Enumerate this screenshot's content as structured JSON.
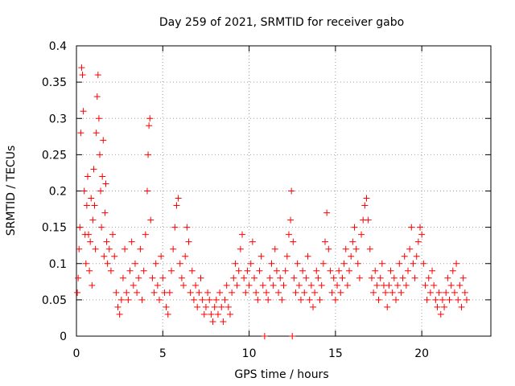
{
  "chart_data": {
    "type": "scatter",
    "title": "Day 259 of 2021, SRMTID for receiver gabo",
    "xlabel": "GPS time / hours",
    "ylabel": "SRMTID / TECUs",
    "xlim": [
      0,
      24
    ],
    "ylim": [
      0,
      0.4
    ],
    "x_ticks": [
      0,
      5,
      10,
      15,
      20
    ],
    "x_tick_labels": [
      "0",
      "5",
      "10",
      "15",
      "20"
    ],
    "y_ticks": [
      0,
      0.05,
      0.1,
      0.15,
      0.2,
      0.25,
      0.3,
      0.35,
      0.4
    ],
    "y_tick_labels": [
      "0",
      "0.05",
      "0.1",
      "0.15",
      "0.2",
      "0.25",
      "0.3",
      "0.35",
      "0.4"
    ],
    "grid": true,
    "marker": "+",
    "color": "#ff0000",
    "series": [
      {
        "name": "SRMTID",
        "points": [
          [
            0.05,
            0.06
          ],
          [
            0.1,
            0.08
          ],
          [
            0.15,
            0.12
          ],
          [
            0.2,
            0.15
          ],
          [
            0.25,
            0.28
          ],
          [
            0.3,
            0.37
          ],
          [
            0.35,
            0.36
          ],
          [
            0.4,
            0.31
          ],
          [
            0.45,
            0.2
          ],
          [
            0.5,
            0.14
          ],
          [
            0.55,
            0.1
          ],
          [
            0.6,
            0.18
          ],
          [
            0.65,
            0.22
          ],
          [
            0.7,
            0.14
          ],
          [
            0.75,
            0.09
          ],
          [
            0.8,
            0.13
          ],
          [
            0.85,
            0.19
          ],
          [
            0.9,
            0.07
          ],
          [
            0.95,
            0.16
          ],
          [
            1.0,
            0.23
          ],
          [
            1.05,
            0.18
          ],
          [
            1.1,
            0.12
          ],
          [
            1.15,
            0.28
          ],
          [
            1.2,
            0.33
          ],
          [
            1.25,
            0.36
          ],
          [
            1.3,
            0.3
          ],
          [
            1.35,
            0.25
          ],
          [
            1.4,
            0.2
          ],
          [
            1.45,
            0.15
          ],
          [
            1.5,
            0.22
          ],
          [
            1.55,
            0.27
          ],
          [
            1.6,
            0.11
          ],
          [
            1.65,
            0.17
          ],
          [
            1.7,
            0.21
          ],
          [
            1.75,
            0.13
          ],
          [
            1.8,
            0.1
          ],
          [
            1.9,
            0.12
          ],
          [
            2.0,
            0.09
          ],
          [
            2.1,
            0.14
          ],
          [
            2.2,
            0.11
          ],
          [
            2.3,
            0.06
          ],
          [
            2.4,
            0.04
          ],
          [
            2.5,
            0.03
          ],
          [
            2.6,
            0.05
          ],
          [
            2.7,
            0.08
          ],
          [
            2.8,
            0.12
          ],
          [
            2.9,
            0.06
          ],
          [
            3.0,
            0.05
          ],
          [
            3.1,
            0.09
          ],
          [
            3.2,
            0.13
          ],
          [
            3.3,
            0.07
          ],
          [
            3.4,
            0.1
          ],
          [
            3.5,
            0.06
          ],
          [
            3.6,
            0.08
          ],
          [
            3.7,
            0.12
          ],
          [
            3.8,
            0.05
          ],
          [
            3.9,
            0.09
          ],
          [
            4.0,
            0.14
          ],
          [
            4.1,
            0.2
          ],
          [
            4.15,
            0.25
          ],
          [
            4.2,
            0.29
          ],
          [
            4.25,
            0.3
          ],
          [
            4.3,
            0.16
          ],
          [
            4.4,
            0.08
          ],
          [
            4.5,
            0.06
          ],
          [
            4.6,
            0.1
          ],
          [
            4.7,
            0.07
          ],
          [
            4.8,
            0.05
          ],
          [
            4.9,
            0.11
          ],
          [
            5.0,
            0.08
          ],
          [
            5.1,
            0.06
          ],
          [
            5.2,
            0.04
          ],
          [
            5.3,
            0.03
          ],
          [
            5.4,
            0.06
          ],
          [
            5.5,
            0.09
          ],
          [
            5.6,
            0.12
          ],
          [
            5.7,
            0.15
          ],
          [
            5.8,
            0.18
          ],
          [
            5.9,
            0.19
          ],
          [
            6.0,
            0.1
          ],
          [
            6.1,
            0.08
          ],
          [
            6.2,
            0.07
          ],
          [
            6.3,
            0.11
          ],
          [
            6.4,
            0.15
          ],
          [
            6.5,
            0.13
          ],
          [
            6.6,
            0.06
          ],
          [
            6.7,
            0.09
          ],
          [
            6.8,
            0.05
          ],
          [
            6.9,
            0.07
          ],
          [
            7.0,
            0.04
          ],
          [
            7.1,
            0.06
          ],
          [
            7.2,
            0.08
          ],
          [
            7.3,
            0.05
          ],
          [
            7.4,
            0.03
          ],
          [
            7.5,
            0.04
          ],
          [
            7.6,
            0.06
          ],
          [
            7.7,
            0.05
          ],
          [
            7.8,
            0.03
          ],
          [
            7.9,
            0.02
          ],
          [
            8.0,
            0.04
          ],
          [
            8.1,
            0.05
          ],
          [
            8.2,
            0.03
          ],
          [
            8.3,
            0.06
          ],
          [
            8.4,
            0.04
          ],
          [
            8.5,
            0.02
          ],
          [
            8.6,
            0.05
          ],
          [
            8.7,
            0.07
          ],
          [
            8.8,
            0.04
          ],
          [
            8.9,
            0.03
          ],
          [
            9.0,
            0.06
          ],
          [
            9.1,
            0.08
          ],
          [
            9.2,
            0.1
          ],
          [
            9.3,
            0.07
          ],
          [
            9.4,
            0.09
          ],
          [
            9.5,
            0.12
          ],
          [
            9.6,
            0.14
          ],
          [
            9.7,
            0.08
          ],
          [
            9.8,
            0.06
          ],
          [
            9.9,
            0.09
          ],
          [
            10.0,
            0.07
          ],
          [
            10.1,
            0.1
          ],
          [
            10.2,
            0.13
          ],
          [
            10.3,
            0.08
          ],
          [
            10.4,
            0.06
          ],
          [
            10.5,
            0.05
          ],
          [
            10.6,
            0.09
          ],
          [
            10.7,
            0.11
          ],
          [
            10.8,
            0.07
          ],
          [
            10.9,
            0.0
          ],
          [
            11.0,
            0.06
          ],
          [
            11.1,
            0.05
          ],
          [
            11.2,
            0.08
          ],
          [
            11.3,
            0.1
          ],
          [
            11.4,
            0.07
          ],
          [
            11.5,
            0.12
          ],
          [
            11.6,
            0.09
          ],
          [
            11.7,
            0.06
          ],
          [
            11.8,
            0.08
          ],
          [
            11.9,
            0.05
          ],
          [
            12.0,
            0.07
          ],
          [
            12.1,
            0.09
          ],
          [
            12.2,
            0.11
          ],
          [
            12.3,
            0.14
          ],
          [
            12.4,
            0.16
          ],
          [
            12.45,
            0.2
          ],
          [
            12.5,
            0.0
          ],
          [
            12.55,
            0.13
          ],
          [
            12.6,
            0.08
          ],
          [
            12.7,
            0.06
          ],
          [
            12.8,
            0.1
          ],
          [
            12.9,
            0.07
          ],
          [
            13.0,
            0.05
          ],
          [
            13.1,
            0.09
          ],
          [
            13.2,
            0.06
          ],
          [
            13.3,
            0.08
          ],
          [
            13.4,
            0.11
          ],
          [
            13.5,
            0.05
          ],
          [
            13.6,
            0.07
          ],
          [
            13.7,
            0.04
          ],
          [
            13.8,
            0.06
          ],
          [
            13.9,
            0.09
          ],
          [
            14.0,
            0.08
          ],
          [
            14.1,
            0.05
          ],
          [
            14.2,
            0.07
          ],
          [
            14.3,
            0.1
          ],
          [
            14.4,
            0.13
          ],
          [
            14.5,
            0.17
          ],
          [
            14.6,
            0.12
          ],
          [
            14.7,
            0.09
          ],
          [
            14.8,
            0.06
          ],
          [
            14.9,
            0.08
          ],
          [
            15.0,
            0.05
          ],
          [
            15.1,
            0.07
          ],
          [
            15.2,
            0.09
          ],
          [
            15.3,
            0.06
          ],
          [
            15.4,
            0.08
          ],
          [
            15.5,
            0.1
          ],
          [
            15.6,
            0.12
          ],
          [
            15.7,
            0.07
          ],
          [
            15.8,
            0.09
          ],
          [
            15.9,
            0.11
          ],
          [
            16.0,
            0.13
          ],
          [
            16.1,
            0.15
          ],
          [
            16.2,
            0.12
          ],
          [
            16.3,
            0.1
          ],
          [
            16.4,
            0.08
          ],
          [
            16.5,
            0.14
          ],
          [
            16.6,
            0.16
          ],
          [
            16.7,
            0.18
          ],
          [
            16.8,
            0.19
          ],
          [
            16.9,
            0.16
          ],
          [
            17.0,
            0.12
          ],
          [
            17.1,
            0.08
          ],
          [
            17.2,
            0.06
          ],
          [
            17.3,
            0.09
          ],
          [
            17.4,
            0.07
          ],
          [
            17.5,
            0.05
          ],
          [
            17.6,
            0.08
          ],
          [
            17.7,
            0.1
          ],
          [
            17.8,
            0.07
          ],
          [
            17.9,
            0.06
          ],
          [
            18.0,
            0.04
          ],
          [
            18.1,
            0.07
          ],
          [
            18.2,
            0.09
          ],
          [
            18.3,
            0.06
          ],
          [
            18.4,
            0.08
          ],
          [
            18.5,
            0.05
          ],
          [
            18.6,
            0.07
          ],
          [
            18.7,
            0.1
          ],
          [
            18.8,
            0.06
          ],
          [
            18.9,
            0.08
          ],
          [
            19.0,
            0.11
          ],
          [
            19.1,
            0.07
          ],
          [
            19.2,
            0.09
          ],
          [
            19.3,
            0.12
          ],
          [
            19.4,
            0.15
          ],
          [
            19.5,
            0.1
          ],
          [
            19.6,
            0.08
          ],
          [
            19.7,
            0.11
          ],
          [
            19.8,
            0.13
          ],
          [
            19.9,
            0.15
          ],
          [
            20.0,
            0.14
          ],
          [
            20.1,
            0.1
          ],
          [
            20.2,
            0.07
          ],
          [
            20.3,
            0.05
          ],
          [
            20.4,
            0.08
          ],
          [
            20.5,
            0.06
          ],
          [
            20.6,
            0.09
          ],
          [
            20.7,
            0.07
          ],
          [
            20.8,
            0.05
          ],
          [
            20.9,
            0.04
          ],
          [
            21.0,
            0.06
          ],
          [
            21.1,
            0.03
          ],
          [
            21.2,
            0.05
          ],
          [
            21.3,
            0.04
          ],
          [
            21.4,
            0.06
          ],
          [
            21.5,
            0.08
          ],
          [
            21.6,
            0.05
          ],
          [
            21.7,
            0.07
          ],
          [
            21.8,
            0.09
          ],
          [
            21.9,
            0.06
          ],
          [
            22.0,
            0.1
          ],
          [
            22.1,
            0.05
          ],
          [
            22.2,
            0.07
          ],
          [
            22.3,
            0.04
          ],
          [
            22.4,
            0.08
          ],
          [
            22.5,
            0.06
          ],
          [
            22.6,
            0.05
          ]
        ]
      }
    ]
  }
}
